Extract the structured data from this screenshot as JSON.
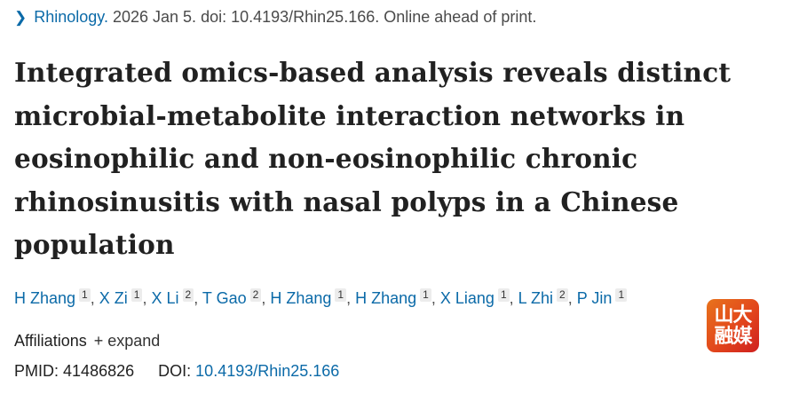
{
  "journal": {
    "name": "Rhinology.",
    "citation": "2026 Jan 5. doi: 10.4193/Rhin25.166. Online ahead of print."
  },
  "title": "Integrated omics-based analysis reveals distinct microbial-metabolite interaction networks in eosinophilic and non-eosinophilic chronic rhinosinusitis with nasal polyps in a Chinese population",
  "authors": [
    {
      "name": "H Zhang",
      "aff": "1"
    },
    {
      "name": "X Zi",
      "aff": "1"
    },
    {
      "name": "X Li",
      "aff": "2"
    },
    {
      "name": "T Gao",
      "aff": "2"
    },
    {
      "name": "H Zhang",
      "aff": "1"
    },
    {
      "name": "H Zhang",
      "aff": "1"
    },
    {
      "name": "X Liang",
      "aff": "1"
    },
    {
      "name": "L Zhi",
      "aff": "2"
    },
    {
      "name": "P Jin",
      "aff": "1"
    }
  ],
  "separator": ",",
  "affiliations": {
    "label": "Affiliations",
    "expand": "+ expand"
  },
  "ids": {
    "pmid_label": "PMID:",
    "pmid": "41486826",
    "doi_label": "DOI:",
    "doi": "10.4193/Rhin25.166"
  },
  "watermark": {
    "line1": "山大",
    "line2": "融媒"
  },
  "colors": {
    "link": "#0b6aa8",
    "text": "#212121"
  }
}
